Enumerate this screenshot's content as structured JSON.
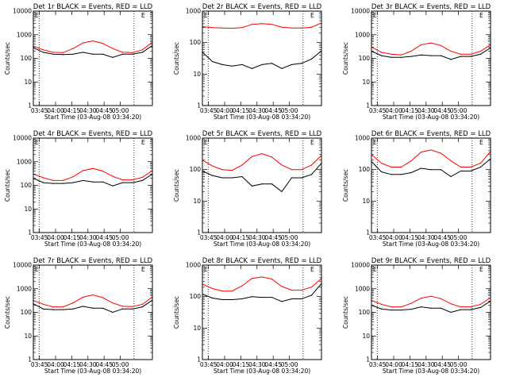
{
  "chart_data": [
    {
      "type": "line",
      "title": "Det 1r BLACK = Events, RED = LLD",
      "xlabel": "Start Time (03-Aug-08 03:34:20)",
      "ylabel": "Counts/sec",
      "y_scale": "log",
      "ylim": [
        1,
        10000
      ],
      "ytick_labels": [
        "1",
        "10",
        "100",
        "1000",
        "10000"
      ],
      "xtick_labels": [
        "03:45",
        "04:00",
        "04:15",
        "04:30",
        "04:45",
        "05:00"
      ],
      "marker_label": "E",
      "grid": false,
      "x": [
        "03:34",
        "03:42",
        "03:50",
        "03:58",
        "04:06",
        "04:14",
        "04:22",
        "04:30",
        "04:38",
        "04:46",
        "04:54",
        "05:02",
        "05:10"
      ],
      "series": [
        {
          "name": "RED",
          "color": "#ff0000",
          "values": [
            330,
            230,
            180,
            175,
            260,
            450,
            550,
            430,
            260,
            180,
            175,
            230,
            480
          ]
        },
        {
          "name": "BLACK",
          "color": "#000000",
          "values": [
            280,
            180,
            150,
            145,
            150,
            180,
            150,
            150,
            110,
            150,
            150,
            180,
            350
          ]
        }
      ]
    },
    {
      "type": "line",
      "title": "Det 2r BLACK = Events, RED = LLD",
      "xlabel": "Start Time (03-Aug-08 03:34:20)",
      "ylabel": "Counts/sec",
      "y_scale": "log",
      "ylim": [
        1,
        1000
      ],
      "ytick_labels": [
        "1",
        "10",
        "100",
        "1000"
      ],
      "xtick_labels": [
        "03:45",
        "04:00",
        "04:15",
        "04:30",
        "04:45",
        "05:00"
      ],
      "marker_label": "E",
      "grid": false,
      "x": [
        "03:34",
        "03:42",
        "03:50",
        "03:58",
        "04:06",
        "04:14",
        "04:22",
        "04:30",
        "04:38",
        "04:46",
        "04:54",
        "05:02",
        "05:10"
      ],
      "series": [
        {
          "name": "RED",
          "color": "#ff0000",
          "values": [
            320,
            300,
            290,
            285,
            300,
            380,
            400,
            380,
            310,
            290,
            290,
            310,
            420
          ]
        },
        {
          "name": "BLACK",
          "color": "#000000",
          "values": [
            50,
            25,
            20,
            18,
            20,
            15,
            20,
            22,
            15,
            20,
            22,
            30,
            55
          ]
        }
      ]
    },
    {
      "type": "line",
      "title": "Det 3r BLACK = Events, RED = LLD",
      "xlabel": "Start Time (03-Aug-08 03:34:20)",
      "ylabel": "Counts/sec",
      "y_scale": "log",
      "ylim": [
        1,
        10000
      ],
      "ytick_labels": [
        "1",
        "10",
        "100",
        "1000",
        "10000"
      ],
      "xtick_labels": [
        "03:45",
        "04:00",
        "04:15",
        "04:30",
        "04:45",
        "05:00"
      ],
      "marker_label": "E",
      "grid": false,
      "x": [
        "03:34",
        "03:42",
        "03:50",
        "03:58",
        "04:06",
        "04:14",
        "04:22",
        "04:30",
        "04:38",
        "04:46",
        "04:54",
        "05:02",
        "05:10"
      ],
      "series": [
        {
          "name": "RED",
          "color": "#ff0000",
          "values": [
            300,
            180,
            150,
            140,
            200,
            380,
            450,
            350,
            200,
            150,
            150,
            200,
            380
          ]
        },
        {
          "name": "BLACK",
          "color": "#000000",
          "values": [
            200,
            130,
            110,
            110,
            120,
            140,
            130,
            130,
            90,
            120,
            120,
            150,
            280
          ]
        }
      ]
    },
    {
      "type": "line",
      "title": "Det 4r BLACK = Events, RED = LLD",
      "xlabel": "Start Time (03-Aug-08 03:34:20)",
      "ylabel": "Counts/sec",
      "y_scale": "log",
      "ylim": [
        1,
        10000
      ],
      "ytick_labels": [
        "1",
        "10",
        "100",
        "1000",
        "10000"
      ],
      "xtick_labels": [
        "03:45",
        "04:00",
        "04:15",
        "04:30",
        "04:45",
        "05:00"
      ],
      "marker_label": "E",
      "grid": false,
      "x": [
        "03:34",
        "03:42",
        "03:50",
        "03:58",
        "04:06",
        "04:14",
        "04:22",
        "04:30",
        "04:38",
        "04:46",
        "04:54",
        "05:02",
        "05:10"
      ],
      "series": [
        {
          "name": "RED",
          "color": "#ff0000",
          "values": [
            300,
            210,
            160,
            160,
            230,
            420,
            520,
            400,
            240,
            170,
            170,
            220,
            420
          ]
        },
        {
          "name": "BLACK",
          "color": "#000000",
          "values": [
            200,
            130,
            120,
            120,
            130,
            160,
            140,
            140,
            95,
            130,
            130,
            160,
            300
          ]
        }
      ]
    },
    {
      "type": "line",
      "title": "Det 5r BLACK = Events, RED = LLD",
      "xlabel": "Start Time (03-Aug-08 03:34:20)",
      "ylabel": "Counts/sec",
      "y_scale": "log",
      "ylim": [
        1,
        1000
      ],
      "ytick_labels": [
        "1",
        "10",
        "100",
        "1000"
      ],
      "xtick_labels": [
        "03:45",
        "04:00",
        "04:15",
        "04:30",
        "04:45",
        "05:00"
      ],
      "marker_label": "E",
      "grid": false,
      "x": [
        "03:34",
        "03:42",
        "03:50",
        "03:58",
        "04:06",
        "04:14",
        "04:22",
        "04:30",
        "04:38",
        "04:46",
        "04:54",
        "05:02",
        "05:10"
      ],
      "series": [
        {
          "name": "RED",
          "color": "#ff0000",
          "values": [
            200,
            130,
            100,
            95,
            140,
            260,
            320,
            250,
            140,
            100,
            100,
            140,
            280
          ]
        },
        {
          "name": "BLACK",
          "color": "#000000",
          "values": [
            90,
            65,
            55,
            55,
            60,
            30,
            35,
            35,
            20,
            55,
            55,
            70,
            160
          ]
        }
      ]
    },
    {
      "type": "line",
      "title": "Det 6r BLACK = Events, RED = LLD",
      "xlabel": "Start Time (03-Aug-08 03:34:20)",
      "ylabel": "Counts/sec",
      "y_scale": "log",
      "ylim": [
        1,
        1000
      ],
      "ytick_labels": [
        "1",
        "10",
        "100",
        "1000"
      ],
      "xtick_labels": [
        "03:45",
        "04:00",
        "04:15",
        "04:30",
        "04:45",
        "05:00"
      ],
      "marker_label": "E",
      "grid": false,
      "x": [
        "03:34",
        "03:42",
        "03:50",
        "03:58",
        "04:06",
        "04:14",
        "04:22",
        "04:30",
        "04:38",
        "04:46",
        "04:54",
        "05:02",
        "05:10"
      ],
      "series": [
        {
          "name": "RED",
          "color": "#ff0000",
          "values": [
            300,
            160,
            120,
            120,
            190,
            360,
            420,
            330,
            190,
            120,
            120,
            160,
            380
          ]
        },
        {
          "name": "BLACK",
          "color": "#000000",
          "values": [
            180,
            85,
            70,
            70,
            80,
            110,
            100,
            100,
            60,
            90,
            90,
            120,
            220
          ]
        }
      ]
    },
    {
      "type": "line",
      "title": "Det 7r BLACK = Events, RED = LLD",
      "xlabel": "Start Time (03-Aug-08 03:34:20)",
      "ylabel": "Counts/sec",
      "y_scale": "log",
      "ylim": [
        1,
        10000
      ],
      "ytick_labels": [
        "1",
        "10",
        "100",
        "1000",
        "10000"
      ],
      "xtick_labels": [
        "03:45",
        "04:00",
        "04:15",
        "04:30",
        "04:45",
        "05:00"
      ],
      "marker_label": "E",
      "grid": false,
      "x": [
        "03:34",
        "03:42",
        "03:50",
        "03:58",
        "04:06",
        "04:14",
        "04:22",
        "04:30",
        "04:38",
        "04:46",
        "04:54",
        "05:02",
        "05:10"
      ],
      "series": [
        {
          "name": "RED",
          "color": "#ff0000",
          "values": [
            320,
            220,
            170,
            170,
            250,
            440,
            550,
            420,
            250,
            180,
            175,
            220,
            450
          ]
        },
        {
          "name": "BLACK",
          "color": "#000000",
          "values": [
            230,
            140,
            130,
            130,
            140,
            180,
            150,
            150,
            100,
            140,
            140,
            170,
            330
          ]
        }
      ]
    },
    {
      "type": "line",
      "title": "Det 8r BLACK = Events, RED = LLD",
      "xlabel": "Start Time (03-Aug-08 03:34:20)",
      "ylabel": "Counts/sec",
      "y_scale": "log",
      "ylim": [
        1,
        1000
      ],
      "ytick_labels": [
        "1",
        "10",
        "100",
        "1000"
      ],
      "xtick_labels": [
        "03:45",
        "04:00",
        "04:15",
        "04:30",
        "04:45",
        "05:00"
      ],
      "marker_label": "E",
      "grid": false,
      "x": [
        "03:34",
        "03:42",
        "03:50",
        "03:58",
        "04:06",
        "04:14",
        "04:22",
        "04:30",
        "04:38",
        "04:46",
        "04:54",
        "05:02",
        "05:10"
      ],
      "series": [
        {
          "name": "RED",
          "color": "#ff0000",
          "values": [
            250,
            180,
            150,
            150,
            220,
            380,
            420,
            360,
            210,
            160,
            160,
            200,
            380
          ]
        },
        {
          "name": "BLACK",
          "color": "#000000",
          "values": [
            120,
            90,
            80,
            80,
            85,
            100,
            95,
            95,
            70,
            85,
            85,
            110,
            260
          ]
        }
      ]
    },
    {
      "type": "line",
      "title": "Det 9r BLACK = Events, RED = LLD",
      "xlabel": "Start Time (03-Aug-08 03:34:20)",
      "ylabel": "Counts/sec",
      "y_scale": "log",
      "ylim": [
        1,
        10000
      ],
      "ytick_labels": [
        "1",
        "10",
        "100",
        "1000",
        "10000"
      ],
      "xtick_labels": [
        "03:45",
        "04:00",
        "04:15",
        "04:30",
        "04:45",
        "05:00"
      ],
      "marker_label": "E",
      "grid": false,
      "x": [
        "03:34",
        "03:42",
        "03:50",
        "03:58",
        "04:06",
        "04:14",
        "04:22",
        "04:30",
        "04:38",
        "04:46",
        "04:54",
        "05:02",
        "05:10"
      ],
      "series": [
        {
          "name": "RED",
          "color": "#ff0000",
          "values": [
            320,
            220,
            170,
            170,
            240,
            400,
            480,
            380,
            230,
            170,
            170,
            220,
            420
          ]
        },
        {
          "name": "BLACK",
          "color": "#000000",
          "values": [
            200,
            140,
            125,
            125,
            135,
            170,
            150,
            150,
            100,
            130,
            130,
            160,
            300
          ]
        }
      ]
    }
  ]
}
